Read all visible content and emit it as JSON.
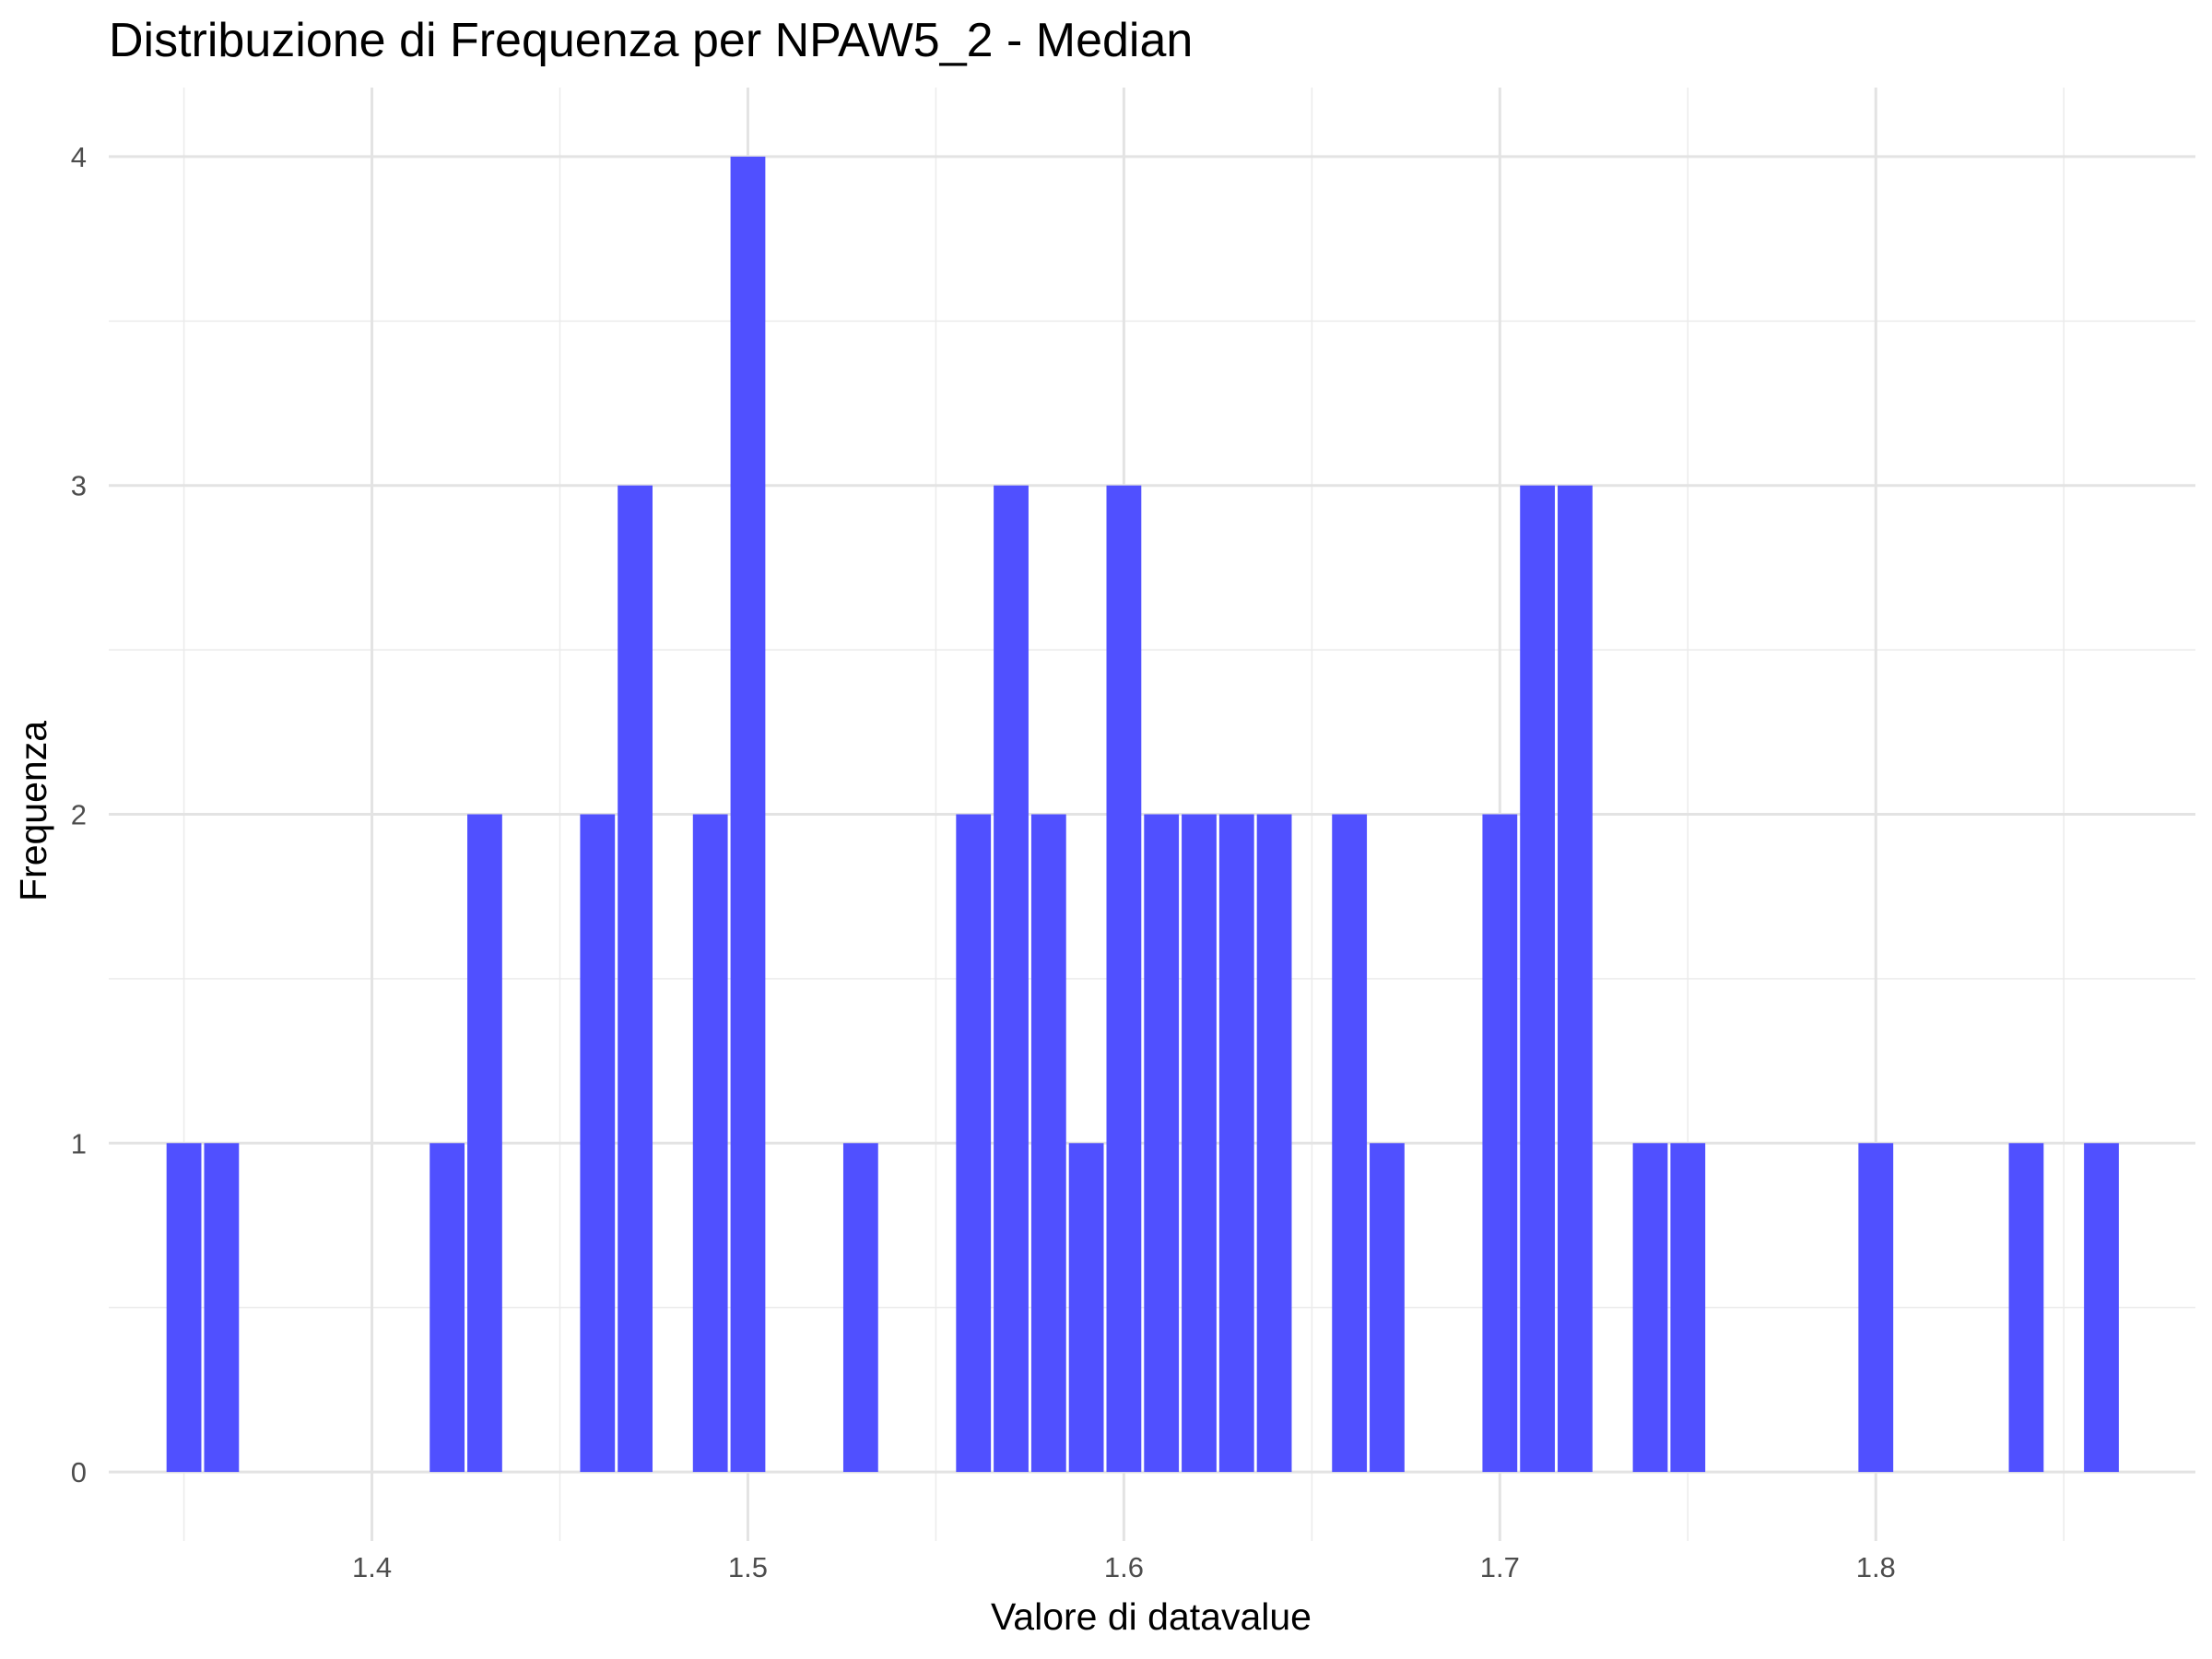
{
  "chart_data": {
    "type": "bar",
    "title": "Distribuzione di Frequenza per NPAW5_2 - Median",
    "xlabel": "Valore di datavalue",
    "ylabel": "Frequenza",
    "xlim": [
      1.33,
      1.885
    ],
    "ylim": [
      -0.21,
      4.21
    ],
    "x_ticks": [
      1.4,
      1.5,
      1.6,
      1.7,
      1.8
    ],
    "x_tick_labels": [
      "1.4",
      "1.5",
      "1.6",
      "1.7",
      "1.8"
    ],
    "y_ticks": [
      0,
      1,
      2,
      3,
      4
    ],
    "y_tick_labels": [
      "0",
      "1",
      "2",
      "3",
      "4"
    ],
    "bin_width": 0.01,
    "grid": true,
    "bar_color": "#4D4DFF",
    "bars": [
      {
        "x": 1.35,
        "count": 1
      },
      {
        "x": 1.36,
        "count": 1
      },
      {
        "x": 1.42,
        "count": 1
      },
      {
        "x": 1.43,
        "count": 2
      },
      {
        "x": 1.46,
        "count": 2
      },
      {
        "x": 1.47,
        "count": 3
      },
      {
        "x": 1.49,
        "count": 2
      },
      {
        "x": 1.5,
        "count": 4
      },
      {
        "x": 1.53,
        "count": 1
      },
      {
        "x": 1.56,
        "count": 2
      },
      {
        "x": 1.57,
        "count": 3
      },
      {
        "x": 1.58,
        "count": 2
      },
      {
        "x": 1.59,
        "count": 1
      },
      {
        "x": 1.6,
        "count": 3
      },
      {
        "x": 1.61,
        "count": 2
      },
      {
        "x": 1.62,
        "count": 2
      },
      {
        "x": 1.63,
        "count": 2
      },
      {
        "x": 1.64,
        "count": 2
      },
      {
        "x": 1.66,
        "count": 2
      },
      {
        "x": 1.67,
        "count": 1
      },
      {
        "x": 1.7,
        "count": 2
      },
      {
        "x": 1.71,
        "count": 3
      },
      {
        "x": 1.72,
        "count": 3
      },
      {
        "x": 1.74,
        "count": 1
      },
      {
        "x": 1.75,
        "count": 1
      },
      {
        "x": 1.8,
        "count": 1
      },
      {
        "x": 1.84,
        "count": 1
      },
      {
        "x": 1.86,
        "count": 1
      }
    ]
  }
}
